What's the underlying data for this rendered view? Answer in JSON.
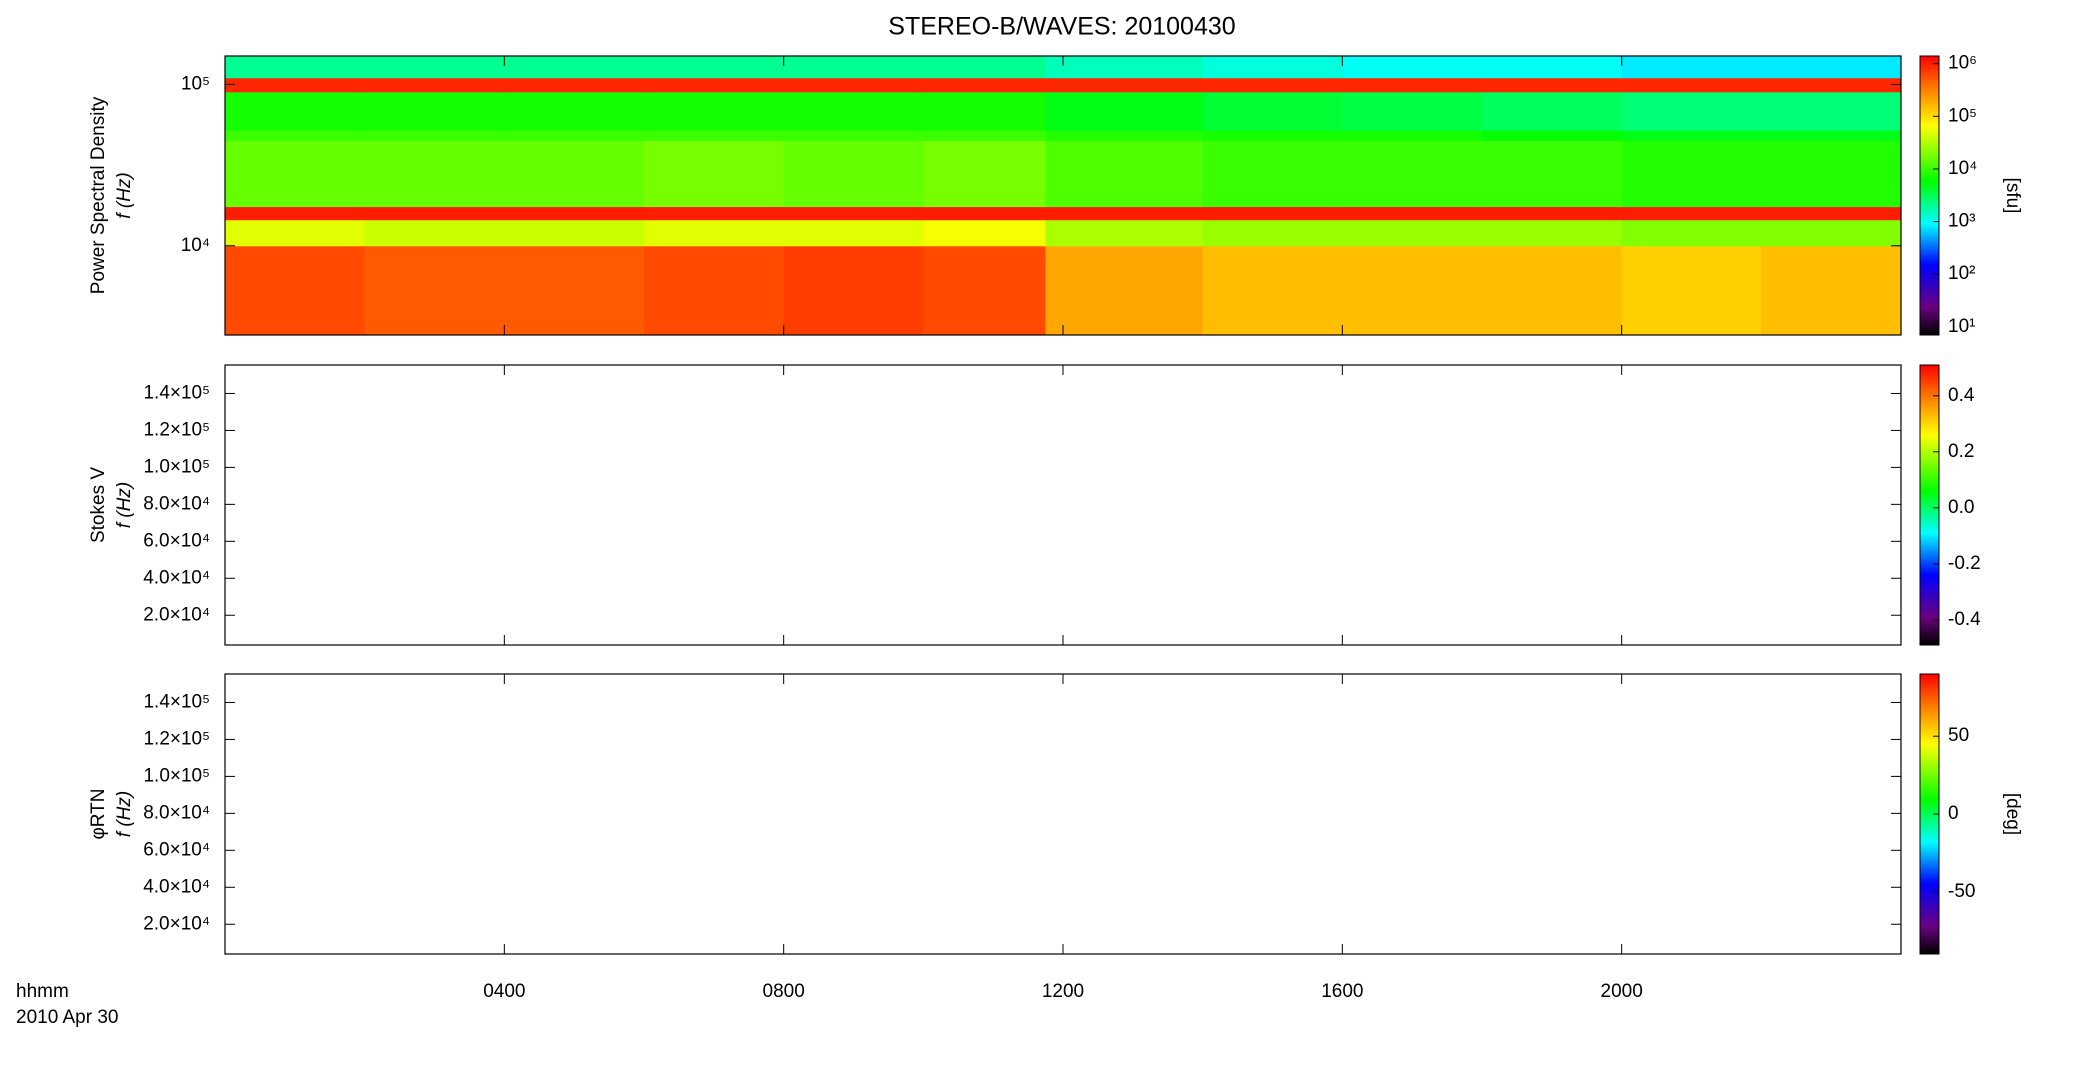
{
  "chart_data": [
    {
      "type": "heatmap",
      "title": "STEREO-B/WAVES: 20100430",
      "ylabel": "Power Spectral Density",
      "ylabel2": "f (Hz)",
      "ylog": true,
      "x": [
        0,
        2,
        4,
        6,
        8,
        10,
        11.75,
        14,
        16,
        18,
        20,
        22,
        24
      ],
      "y": [
        2800,
        10000,
        14500,
        17500,
        45000,
        52000,
        90000,
        110000,
        150000
      ],
      "z": [
        [
          600000,
          500000,
          500000,
          600000,
          700000,
          600000,
          200000,
          150000,
          150000,
          150000,
          120000,
          150000
        ],
        [
          50000,
          40000,
          40000,
          50000,
          50000,
          60000,
          30000,
          25000,
          25000,
          25000,
          20000,
          20000
        ],
        [
          1000000,
          1000000,
          1000000,
          1000000,
          1000000,
          1000000,
          1000000,
          1000000,
          1000000,
          1000000,
          1000000,
          1000000
        ],
        [
          15000,
          15000,
          15000,
          18000,
          15000,
          18000,
          12000,
          10000,
          10000,
          10000,
          8000,
          8000
        ],
        [
          10000,
          10000,
          10000,
          10000,
          10000,
          10000,
          8000,
          7000,
          7000,
          6000,
          5000,
          5000
        ],
        [
          7000,
          7000,
          7000,
          7000,
          7000,
          7000,
          5000,
          4000,
          3500,
          3000,
          2500,
          2500
        ],
        [
          900000,
          900000,
          900000,
          900000,
          900000,
          900000,
          900000,
          900000,
          900000,
          900000,
          900000,
          900000
        ],
        [
          2000,
          2000,
          2000,
          2000,
          2000,
          2000,
          1500,
          1200,
          1000,
          1000,
          800,
          800
        ]
      ],
      "xlim": [
        0,
        24
      ],
      "ylim": [
        2800,
        150000
      ],
      "yticks": [
        {
          "value": 10000,
          "label": "10⁴"
        },
        {
          "value": 100000,
          "label": "10⁵"
        }
      ],
      "colorbar": {
        "label": "[sfu]",
        "log": true,
        "zlim": [
          7,
          1400000
        ],
        "ticks": [
          {
            "value": 10,
            "label": "10¹"
          },
          {
            "value": 100,
            "label": "10²"
          },
          {
            "value": 1000,
            "label": "10³"
          },
          {
            "value": 10000,
            "label": "10⁴"
          },
          {
            "value": 100000,
            "label": "10⁵"
          },
          {
            "value": 1000000,
            "label": "10⁶"
          }
        ]
      }
    },
    {
      "type": "heatmap",
      "ylabel": "Stokes V",
      "ylabel2": "f (Hz)",
      "ylog": false,
      "xlim": [
        0,
        24
      ],
      "ylim": [
        3900,
        155400
      ],
      "yticks": [
        {
          "value": 20000,
          "label": "2.0×10⁴"
        },
        {
          "value": 40000,
          "label": "4.0×10⁴"
        },
        {
          "value": 60000,
          "label": "6.0×10⁴"
        },
        {
          "value": 80000,
          "label": "8.0×10⁴"
        },
        {
          "value": 100000,
          "label": "1.0×10⁵"
        },
        {
          "value": 120000,
          "label": "1.2×10⁵"
        },
        {
          "value": 140000,
          "label": "1.4×10⁵"
        }
      ],
      "colorbar": {
        "log": false,
        "zlim": [
          -0.49,
          0.51
        ],
        "ticks": [
          -0.4,
          -0.2,
          {
            "value": 0,
            "label": "0.0"
          },
          0.2,
          0.4
        ]
      }
    },
    {
      "type": "heatmap",
      "ylabel": "φRTN",
      "ylabel2": "f (Hz)",
      "ylog": false,
      "xlim": [
        0,
        24
      ],
      "ylim": [
        3900,
        155400
      ],
      "yticks": [
        {
          "value": 20000,
          "label": "2.0×10⁴"
        },
        {
          "value": 40000,
          "label": "4.0×10⁴"
        },
        {
          "value": 60000,
          "label": "6.0×10⁴"
        },
        {
          "value": 80000,
          "label": "8.0×10⁴"
        },
        {
          "value": 100000,
          "label": "1.0×10⁵"
        },
        {
          "value": 120000,
          "label": "1.2×10⁵"
        },
        {
          "value": 140000,
          "label": "1.4×10⁵"
        }
      ],
      "colorbar": {
        "label": "[deg]",
        "log": false,
        "zlim": [
          -90,
          90
        ],
        "ticks": [
          -50,
          0,
          50
        ]
      },
      "xlabel": "hhmm",
      "date": "2010 Apr 30",
      "xticks": [
        {
          "value": 4,
          "label": "0400"
        },
        {
          "value": 8,
          "label": "0800"
        },
        {
          "value": 12,
          "label": "1200"
        },
        {
          "value": 16,
          "label": "1600"
        },
        {
          "value": 20,
          "label": "2000"
        }
      ]
    }
  ]
}
